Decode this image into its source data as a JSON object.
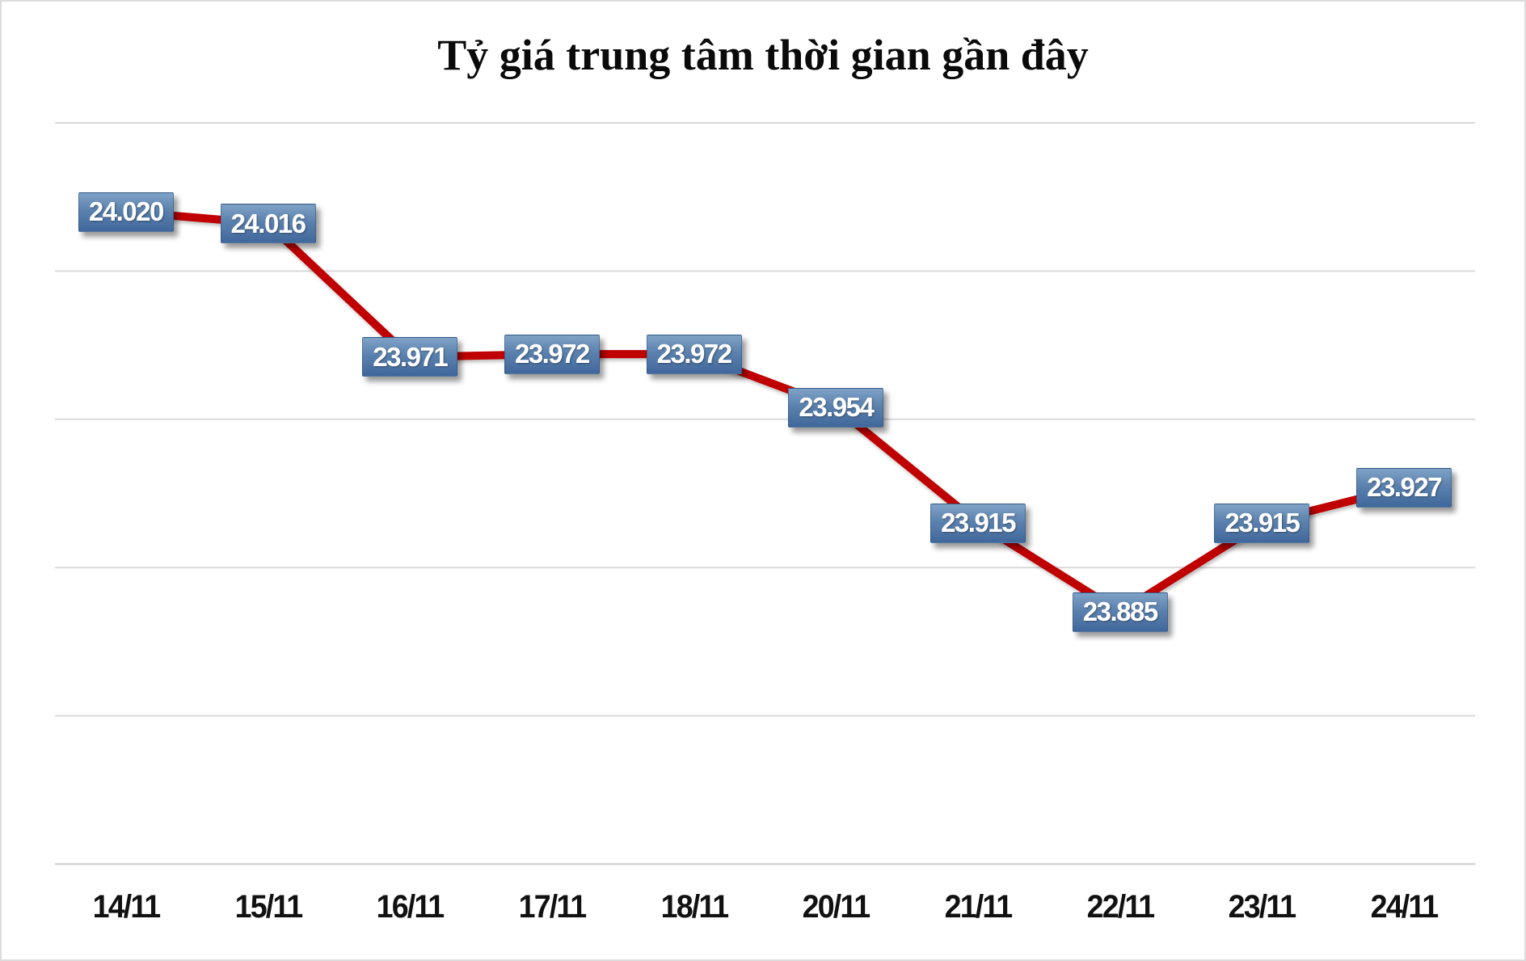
{
  "title": "Tỷ giá trung tâm thời gian gần đây",
  "chart_data": {
    "type": "line",
    "title": "Tỷ giá trung tâm thời gian gần đây",
    "categories": [
      "14/11",
      "15/11",
      "16/11",
      "17/11",
      "18/11",
      "20/11",
      "21/11",
      "22/11",
      "23/11",
      "24/11"
    ],
    "series": [
      {
        "values": [
          24020,
          24016,
          23971,
          23972,
          23972,
          23954,
          23915,
          23885,
          23915,
          23927
        ],
        "labels": [
          "24.020",
          "24.016",
          "23.971",
          "23.972",
          "23.972",
          "23.954",
          "23.915",
          "23.885",
          "23.915",
          "23.927"
        ]
      }
    ],
    "ylim": [
      23800,
      24050
    ],
    "gridline_step": 50,
    "grid": "horizontal",
    "legend": "none",
    "xlabel": "",
    "ylabel": "",
    "y_axis_labels_visible": false,
    "colors": {
      "line": "#C00000",
      "gridline": "#D9D9D9",
      "axis_line": "#D4D4D4",
      "label_box_top": "#7FA2C6",
      "label_box_bottom": "#40679B",
      "label_text": "#FFFFFF",
      "title_text": "#0A0A0A",
      "axis_text": "#111111",
      "background": "#FFFFFF",
      "frame_border": "#DCDCDC"
    }
  }
}
